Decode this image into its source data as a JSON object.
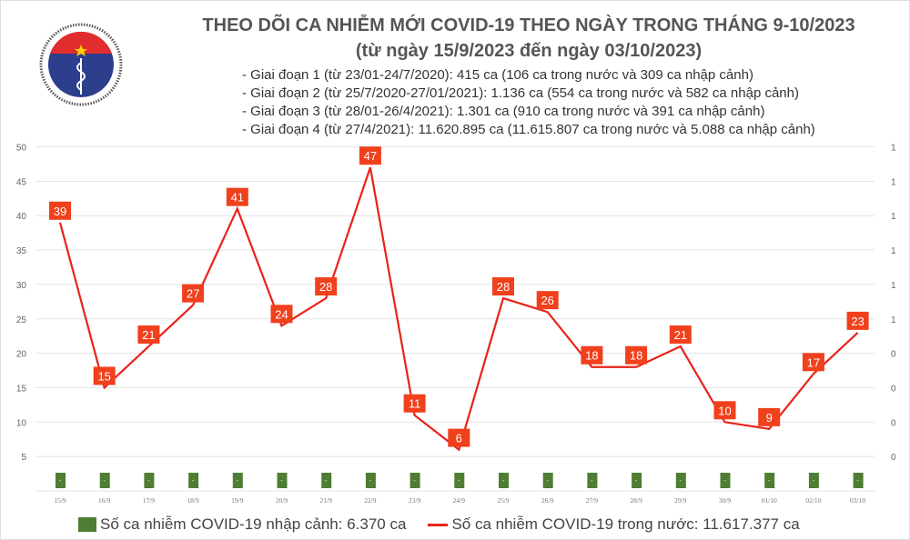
{
  "header": {
    "title": "THEO DÕI CA NHIỄM MỚI COVID-19 THEO NGÀY TRONG THÁNG 9-10/2023",
    "subtitle": "(từ ngày 15/9/2023 đến ngày 03/10/2023)",
    "periods": [
      "- Giai đoạn 1 (từ 23/01-24/7/2020): 415 ca (106 ca trong nước và 309 ca nhập cảnh)",
      "- Giai đoạn 2 (từ 25/7/2020-27/01/2021): 1.136 ca (554 ca trong nước và 582 ca nhập cảnh)",
      "- Giai đoạn 3 (từ 28/01-26/4/2021): 1.301 ca (910 ca trong nước và 391 ca nhập cảnh)",
      "- Giai đoạn 4 (từ 27/4/2021): 11.620.895 ca (11.615.807 ca trong nước và 5.088 ca nhập cảnh)"
    ],
    "logo": {
      "top_text": "BỘ Y TẾ",
      "bottom_text": "MINISTRY OF HEALTH"
    }
  },
  "chart_data": {
    "type": "line",
    "categories": [
      "15/9",
      "16/9",
      "17/9",
      "18/9",
      "19/9",
      "20/9",
      "21/9",
      "22/9",
      "23/9",
      "24/9",
      "25/9",
      "26/9",
      "27/9",
      "28/9",
      "29/9",
      "30/9",
      "01/10",
      "02/10",
      "03/10"
    ],
    "series": [
      {
        "name": "Số ca nhiễm COVID-19 nhập cảnh: 6.370 ca",
        "type": "bar",
        "axis": "right",
        "labels": [
          "-",
          "-",
          "-",
          "-",
          "-",
          "-",
          "-",
          "-",
          "-",
          "-",
          "-",
          "-",
          "-",
          "-",
          "-",
          "-",
          "-",
          "-",
          "-"
        ],
        "color": "#4e7d33"
      },
      {
        "name": "Số ca nhiễm COVID-19 trong nước: 11.617.377 ca",
        "type": "line",
        "axis": "left",
        "values": [
          39,
          15,
          21,
          27,
          41,
          24,
          28,
          47,
          11,
          6,
          28,
          26,
          18,
          18,
          21,
          10,
          9,
          17,
          23
        ],
        "color": "#e8231a"
      }
    ],
    "left_ticks": [
      "50",
      "45",
      "40",
      "35",
      "30",
      "25",
      "20",
      "15",
      "10",
      "5"
    ],
    "right_ticks": [
      "1",
      "1",
      "1",
      "1",
      "1",
      "1",
      "0",
      "0",
      "0",
      "0"
    ],
    "ylim": [
      0,
      50
    ],
    "grid": true,
    "legend_position": "bottom",
    "label_color": "#f0401c"
  }
}
